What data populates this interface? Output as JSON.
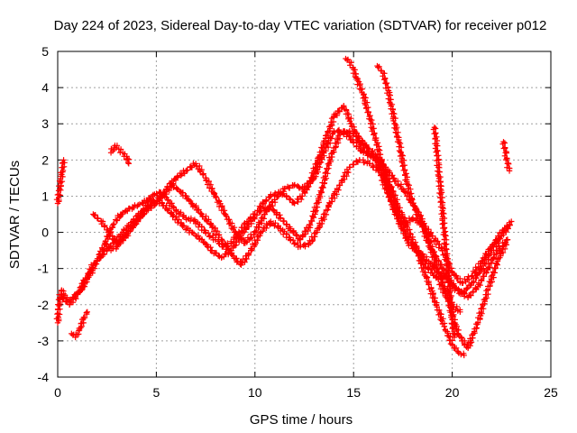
{
  "chart_data": {
    "type": "scatter",
    "title": "Day 224 of 2023, Sidereal Day-to-day VTEC variation (SDTVAR) for receiver p012",
    "xlabel": "GPS time / hours",
    "ylabel": "SDTVAR / TECUs",
    "xlim": [
      0,
      25
    ],
    "ylim": [
      -4,
      5
    ],
    "x_ticks": [
      "0",
      "5",
      "10",
      "15",
      "20",
      "25"
    ],
    "y_ticks": [
      "-4",
      "-3",
      "-2",
      "-1",
      "0",
      "1",
      "2",
      "3",
      "4",
      "5"
    ],
    "grid": true,
    "marker": "+",
    "series_color": "#ff0000",
    "series": [
      {
        "name": "track-1",
        "x": [
          0.0,
          0.1,
          0.2,
          0.3,
          0.5,
          0.8,
          1.2,
          1.6,
          2.0,
          2.4,
          2.8,
          3.2,
          3.8,
          4.3,
          4.8,
          5.2,
          5.6,
          6.0,
          6.5,
          7.0,
          7.5,
          8.0,
          8.4,
          8.8,
          9.2,
          9.6,
          10.0,
          10.4,
          10.8,
          11.2,
          11.6,
          12.0,
          12.4,
          12.8,
          13.2,
          13.6,
          14.0,
          14.5,
          14.9,
          15.3,
          15.7,
          16.2,
          16.6,
          17.0,
          17.5,
          18.0,
          18.5,
          19.0,
          19.5,
          20.0,
          20.5,
          21.0,
          21.5,
          22.0,
          22.5,
          23.0
        ],
        "y": [
          -2.5,
          -1.8,
          -1.6,
          -1.7,
          -1.9,
          -1.8,
          -1.6,
          -1.2,
          -0.8,
          -0.3,
          0.2,
          0.5,
          0.7,
          0.8,
          1.0,
          1.1,
          0.9,
          0.6,
          0.4,
          0.3,
          0.0,
          -0.2,
          -0.4,
          -0.3,
          0.0,
          0.3,
          0.5,
          0.8,
          1.0,
          1.1,
          1.0,
          0.8,
          1.0,
          1.4,
          2.0,
          2.6,
          3.2,
          3.5,
          3.0,
          2.5,
          2.2,
          2.0,
          1.8,
          1.5,
          1.2,
          0.8,
          0.3,
          -0.5,
          -1.0,
          -1.5,
          -1.7,
          -1.4,
          -1.0,
          -0.5,
          -0.1,
          0.3
        ]
      },
      {
        "name": "track-2",
        "x": [
          0.2,
          0.6,
          1.0,
          1.4,
          1.8,
          2.3,
          2.8,
          3.3,
          3.8,
          4.3,
          4.8,
          5.3,
          5.8,
          6.3,
          6.8,
          7.3,
          7.8,
          8.3,
          8.8,
          9.3,
          9.8,
          10.3,
          10.8,
          11.3,
          11.8,
          12.3,
          12.8,
          13.3,
          13.8,
          14.3,
          14.8,
          15.3,
          15.8,
          16.3,
          16.8,
          17.3,
          17.8,
          18.3,
          18.8,
          19.3,
          19.8,
          20.3,
          20.8,
          21.3,
          21.8,
          22.3,
          22.8
        ],
        "y": [
          -1.8,
          -2.0,
          -1.7,
          -1.3,
          -0.9,
          -0.6,
          -0.3,
          0.0,
          0.3,
          0.6,
          0.9,
          0.8,
          0.5,
          0.2,
          0.0,
          -0.2,
          -0.5,
          -0.7,
          -0.5,
          -0.1,
          0.3,
          0.6,
          0.7,
          0.4,
          0.1,
          -0.2,
          0.2,
          1.0,
          2.0,
          2.7,
          2.8,
          2.6,
          2.3,
          2.0,
          1.3,
          0.4,
          -0.2,
          -0.5,
          -0.8,
          -1.1,
          -1.3,
          -1.6,
          -1.8,
          -1.5,
          -1.0,
          -0.5,
          -0.2
        ]
      },
      {
        "name": "track-3",
        "x": [
          1.8,
          2.2,
          2.6,
          3.0,
          3.5,
          4.0,
          4.5,
          5.0,
          5.5,
          6.0,
          6.5,
          7.0,
          7.5,
          8.0,
          8.5,
          9.0,
          9.5,
          10.0,
          10.5,
          11.0,
          11.5,
          12.0,
          12.5,
          13.0,
          13.5,
          14.0,
          14.5,
          15.0,
          15.5,
          16.0,
          16.5,
          17.0,
          17.5,
          18.0,
          18.5,
          19.0,
          19.5,
          20.0,
          20.5,
          21.0,
          21.5,
          22.0,
          22.5,
          22.9
        ],
        "y": [
          0.5,
          0.3,
          0.0,
          -0.3,
          -0.1,
          0.3,
          0.6,
          0.8,
          1.2,
          1.5,
          1.7,
          1.9,
          1.5,
          1.0,
          0.5,
          0.0,
          -0.3,
          0.0,
          0.5,
          0.9,
          1.2,
          1.3,
          1.2,
          1.5,
          2.2,
          2.8,
          2.8,
          2.5,
          2.2,
          2.1,
          1.6,
          0.7,
          0.2,
          0.4,
          0.2,
          -0.1,
          -0.5,
          -1.1,
          -1.4,
          -1.2,
          -0.8,
          -0.4,
          0.0,
          0.2
        ]
      },
      {
        "name": "track-4",
        "x": [
          2.4,
          2.7,
          3.0,
          3.4,
          3.8,
          4.3,
          4.8,
          5.3,
          5.8,
          6.3,
          6.8,
          7.3,
          7.8,
          8.3,
          8.8,
          9.3,
          9.8,
          10.3,
          10.8,
          11.3,
          11.8,
          12.3,
          12.8,
          13.3,
          13.8,
          14.3,
          14.8,
          15.3,
          15.8,
          16.3,
          16.8,
          17.3,
          17.8,
          18.3,
          18.8,
          19.3,
          19.8,
          20.3,
          20.8,
          21.3,
          21.8,
          22.3,
          22.8
        ],
        "y": [
          -0.3,
          -0.5,
          -0.4,
          -0.1,
          0.2,
          0.5,
          0.8,
          1.0,
          1.3,
          1.1,
          0.8,
          0.5,
          0.2,
          -0.2,
          -0.6,
          -0.9,
          -0.5,
          0.0,
          0.3,
          0.1,
          -0.2,
          -0.4,
          -0.3,
          0.2,
          0.8,
          1.3,
          1.8,
          2.0,
          1.9,
          1.7,
          1.0,
          0.3,
          -0.3,
          -0.6,
          -1.0,
          -1.3,
          -1.9,
          -2.8,
          -3.2,
          -2.5,
          -1.6,
          -0.8,
          -0.2
        ]
      },
      {
        "name": "track-5",
        "x": [
          0.0,
          0.1,
          0.2,
          0.3
        ],
        "y": [
          0.8,
          1.2,
          1.6,
          2.0
        ]
      },
      {
        "name": "track-6",
        "x": [
          0.7,
          0.9,
          1.1,
          1.3,
          1.5
        ],
        "y": [
          -2.8,
          -2.9,
          -2.7,
          -2.4,
          -2.2
        ]
      },
      {
        "name": "track-7",
        "x": [
          2.7,
          2.9,
          3.1,
          3.3,
          3.5,
          3.6
        ],
        "y": [
          2.2,
          2.4,
          2.3,
          2.2,
          2.1,
          1.9
        ]
      },
      {
        "name": "track-8",
        "x": [
          14.6,
          14.8,
          15.0,
          15.2,
          15.5,
          15.8,
          16.1,
          16.4,
          16.8,
          17.2,
          17.6,
          18.0,
          18.4,
          18.8,
          19.2,
          19.6,
          20.0,
          20.3,
          20.6
        ],
        "y": [
          4.8,
          4.7,
          4.5,
          4.2,
          3.8,
          3.2,
          2.6,
          2.0,
          1.4,
          0.8,
          0.3,
          -0.2,
          -0.8,
          -1.4,
          -2.0,
          -2.6,
          -3.1,
          -3.3,
          -3.4
        ]
      },
      {
        "name": "track-9",
        "x": [
          16.2,
          16.5,
          16.8,
          17.1,
          17.4,
          17.7,
          18.0,
          18.4,
          18.8,
          19.2,
          19.6,
          20.0,
          20.4
        ],
        "y": [
          4.6,
          4.4,
          3.8,
          3.0,
          2.2,
          1.4,
          0.8,
          0.3,
          -0.3,
          -0.9,
          -1.5,
          -2.0,
          -2.2
        ]
      },
      {
        "name": "track-10",
        "x": [
          19.1,
          19.2,
          19.3,
          19.4,
          19.5,
          19.6,
          19.7,
          19.8,
          19.9,
          20.0,
          20.1
        ],
        "y": [
          2.9,
          2.4,
          1.8,
          1.2,
          0.6,
          0.0,
          -0.6,
          -1.2,
          -1.8,
          -2.4,
          -2.9
        ]
      },
      {
        "name": "track-11",
        "x": [
          22.6,
          22.7,
          22.8,
          22.9
        ],
        "y": [
          2.5,
          2.2,
          1.9,
          1.7
        ]
      }
    ]
  }
}
